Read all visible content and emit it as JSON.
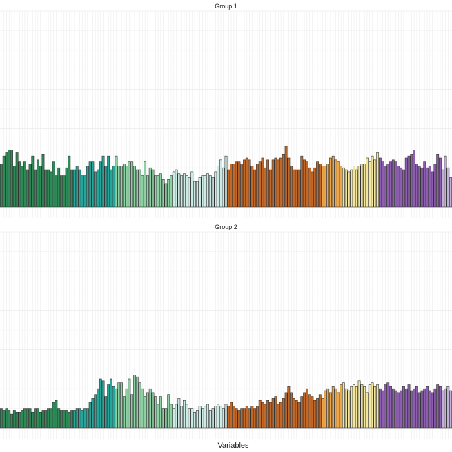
{
  "chart_data": {
    "type": "bar",
    "xlabel": "Variables",
    "ylabel": "",
    "grid": true,
    "legend": "none",
    "ylim": [
      0,
      10
    ],
    "colors": {
      "g1": "#2e8b57",
      "g2": "#26a69a",
      "g3": "#8fd1a4",
      "g4": "#cdeae5",
      "o1": "#c2692a",
      "o2": "#eda74a",
      "o3": "#f2e6a0",
      "p1": "#8e5fb0",
      "p2": "#c0b0d6"
    },
    "color_groups": [
      {
        "color": "g1",
        "count": 28
      },
      {
        "color": "g2",
        "count": 16
      },
      {
        "color": "g3",
        "count": 22
      },
      {
        "color": "g4",
        "count": 21
      },
      {
        "color": "o1",
        "count": 36
      },
      {
        "color": "o2",
        "count": 8
      },
      {
        "color": "o3",
        "count": 14
      },
      {
        "color": "p1",
        "count": 24
      },
      {
        "color": "p2",
        "count": 4
      }
    ],
    "panels": [
      {
        "title": "Group 1",
        "values": [
          2.2,
          2.6,
          2.8,
          2.9,
          2.9,
          2.1,
          2.8,
          2.3,
          2.1,
          2.3,
          1.9,
          2.2,
          2.6,
          1.9,
          2.4,
          2.1,
          2.7,
          1.9,
          1.9,
          1.8,
          2.3,
          1.6,
          2.0,
          1.6,
          1.6,
          2.0,
          2.6,
          1.9,
          1.9,
          2.1,
          1.9,
          1.6,
          1.6,
          2.1,
          2.3,
          2.3,
          1.8,
          1.9,
          2.3,
          2.6,
          2.1,
          2.6,
          1.9,
          2.1,
          2.6,
          2.1,
          2.1,
          2.2,
          2.1,
          2.3,
          2.3,
          2.1,
          1.9,
          1.9,
          1.6,
          2.3,
          1.6,
          2.0,
          1.9,
          1.6,
          1.6,
          1.7,
          1.4,
          1.2,
          1.4,
          1.6,
          1.8,
          1.9,
          1.7,
          1.6,
          1.7,
          1.6,
          1.5,
          1.8,
          1.3,
          1.3,
          1.5,
          1.6,
          1.6,
          1.7,
          1.6,
          1.5,
          1.8,
          2.1,
          2.4,
          2.0,
          2.6,
          1.9,
          2.2,
          2.2,
          2.3,
          2.3,
          2.2,
          2.4,
          2.5,
          2.4,
          2.1,
          1.9,
          2.2,
          2.3,
          2.5,
          2.0,
          2.4,
          1.9,
          2.4,
          2.5,
          2.4,
          2.5,
          2.7,
          3.1,
          2.5,
          2.1,
          1.9,
          1.9,
          1.9,
          2.6,
          2.4,
          2.3,
          2.0,
          1.8,
          2.0,
          2.3,
          2.2,
          2.1,
          2.1,
          2.2,
          2.5,
          2.6,
          2.4,
          2.3,
          2.1,
          2.0,
          1.9,
          1.8,
          1.9,
          2.1,
          1.9,
          2.1,
          2.2,
          2.2,
          2.5,
          2.3,
          2.6,
          2.4,
          2.8,
          2.5,
          2.3,
          2.1,
          2.2,
          2.3,
          2.4,
          2.3,
          2.1,
          2.0,
          1.9,
          2.5,
          2.6,
          2.7,
          2.9,
          2.2,
          2.1,
          2.0,
          2.3,
          2.0,
          2.1,
          1.8,
          2.2,
          2.7,
          2.5,
          1.9,
          2.6,
          2.0,
          1.5
        ]
      },
      {
        "title": "Group 2",
        "values": [
          1.0,
          0.9,
          1.0,
          0.9,
          0.7,
          0.9,
          0.8,
          0.8,
          0.9,
          1.0,
          1.0,
          1.0,
          0.8,
          1.0,
          1.0,
          0.8,
          0.9,
          0.9,
          1.0,
          1.0,
          1.3,
          1.4,
          1.0,
          0.9,
          0.9,
          0.9,
          0.8,
          0.9,
          0.9,
          1.0,
          1.0,
          0.9,
          1.0,
          1.0,
          1.3,
          1.5,
          1.7,
          2.0,
          2.5,
          2.4,
          1.6,
          2.2,
          2.5,
          2.1,
          2.0,
          2.3,
          2.3,
          1.6,
          2.0,
          2.5,
          1.7,
          2.7,
          2.6,
          2.3,
          2.0,
          1.6,
          1.8,
          2.0,
          1.8,
          1.6,
          1.2,
          1.6,
          1.0,
          1.0,
          1.7,
          1.2,
          1.0,
          1.2,
          1.5,
          1.1,
          1.4,
          1.2,
          1.0,
          1.0,
          0.8,
          0.9,
          1.1,
          1.0,
          1.1,
          1.2,
          0.9,
          1.0,
          1.1,
          1.2,
          1.1,
          1.0,
          1.2,
          1.1,
          1.3,
          1.1,
          1.0,
          0.9,
          1.0,
          1.0,
          1.1,
          1.0,
          1.1,
          1.0,
          1.1,
          1.4,
          1.3,
          1.2,
          1.4,
          1.3,
          1.5,
          1.6,
          1.2,
          1.3,
          1.5,
          1.8,
          2.1,
          1.8,
          1.5,
          1.4,
          1.3,
          1.6,
          1.8,
          2.0,
          1.7,
          1.6,
          1.4,
          1.5,
          1.7,
          1.5,
          1.9,
          2.0,
          1.8,
          2.1,
          2.0,
          1.8,
          2.2,
          2.3,
          2.0,
          1.9,
          2.1,
          2.2,
          2.1,
          2.4,
          2.2,
          2.1,
          1.8,
          2.2,
          2.3,
          2.1,
          2.2,
          2.0,
          1.9,
          2.2,
          2.3,
          2.1,
          2.0,
          1.9,
          1.8,
          1.9,
          2.1,
          2.0,
          2.2,
          1.9,
          2.0,
          2.1,
          1.8,
          1.9,
          2.0,
          2.1,
          1.9,
          1.8,
          2.0,
          2.2,
          2.1,
          1.9,
          2.0,
          2.1,
          1.9
        ]
      }
    ]
  }
}
